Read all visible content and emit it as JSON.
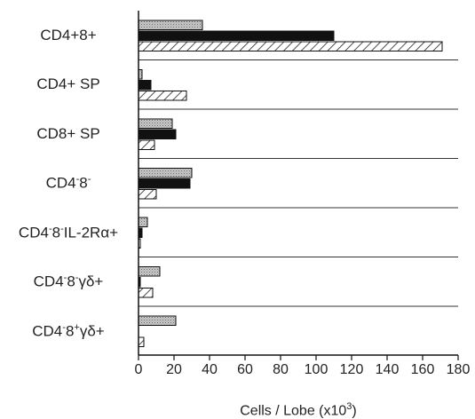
{
  "chart_data": {
    "type": "bar",
    "orientation": "horizontal",
    "categories": [
      {
        "pre": "CD4+8+",
        "parts": []
      },
      {
        "pre": "CD4+ SP",
        "parts": []
      },
      {
        "pre": "CD8+ SP",
        "parts": []
      },
      {
        "pre": "CD4",
        "parts": [
          [
            "-",
            "sup"
          ],
          [
            "8",
            ""
          ],
          [
            "-",
            "sup"
          ]
        ]
      },
      {
        "pre": "CD4",
        "parts": [
          [
            "-",
            "sup"
          ],
          [
            "8",
            ""
          ],
          [
            "-",
            "sup"
          ],
          [
            "IL-2Rα+",
            ""
          ]
        ]
      },
      {
        "pre": "CD4",
        "parts": [
          [
            "-",
            "sup"
          ],
          [
            "8",
            ""
          ],
          [
            "-",
            "sup"
          ],
          [
            "γδ+",
            ""
          ]
        ]
      },
      {
        "pre": "CD4",
        "parts": [
          [
            "-",
            "sup"
          ],
          [
            "8",
            ""
          ],
          [
            "+",
            "sup"
          ],
          [
            "γδ+",
            ""
          ]
        ]
      }
    ],
    "series": [
      {
        "pattern": "stipple",
        "values": [
          36,
          2,
          19,
          30,
          5,
          12,
          21
        ]
      },
      {
        "pattern": "solid",
        "values": [
          110,
          7,
          21,
          29,
          2,
          1,
          0
        ]
      },
      {
        "pattern": "hatch",
        "values": [
          171,
          27,
          9,
          10,
          1,
          8,
          3
        ]
      }
    ],
    "xlim": [
      0,
      180
    ],
    "xticks": [
      0,
      20,
      40,
      60,
      80,
      100,
      120,
      140,
      160,
      180
    ],
    "xlabel": {
      "text": "Cells / Lobe (x10",
      "sup": "3",
      "close": ")"
    },
    "grid": false
  }
}
